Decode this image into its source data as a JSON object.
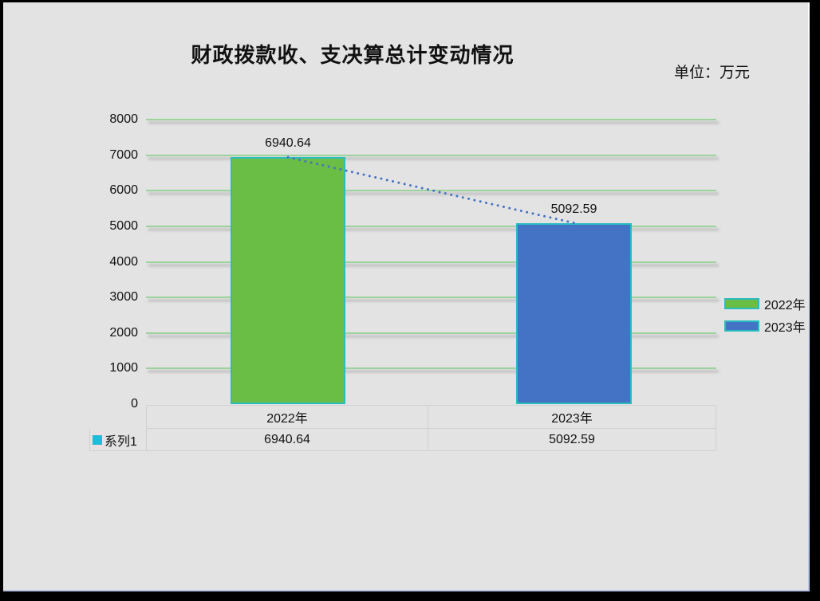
{
  "header": {
    "title": "财政拨款收、支决算总计变动情况",
    "unit_label": "单位：万元"
  },
  "chart_data": {
    "type": "bar",
    "title": "财政拨款收、支决算总计变动情况",
    "categories": [
      "2022年",
      "2023年"
    ],
    "series": [
      {
        "name": "系列1",
        "values": [
          6940.64,
          5092.59
        ]
      }
    ],
    "data_labels": [
      "6940.64",
      "5092.59"
    ],
    "legend": [
      "2022年",
      "2023年"
    ],
    "legend_position": "right",
    "y_ticks": [
      0,
      1000,
      2000,
      3000,
      4000,
      5000,
      6000,
      7000,
      8000
    ],
    "ylim": [
      0,
      8000
    ],
    "xlabel": "",
    "ylabel": "",
    "grid": true,
    "trendline": "dotted line connecting bar tops"
  },
  "data_table": {
    "series_label": "系列1",
    "columns": [
      "2022年",
      "2023年"
    ],
    "values": [
      "6940.64",
      "5092.59"
    ]
  },
  "colors": {
    "background": "#e3e3e3",
    "bar_2022": "#6abe45",
    "bar_2023": "#4472c4",
    "bar_border": "#2abdc0",
    "trendline": "#4472c4",
    "gridline": "#9cd39a",
    "series_marker": "#1ebcd7",
    "frame": "#000000"
  }
}
